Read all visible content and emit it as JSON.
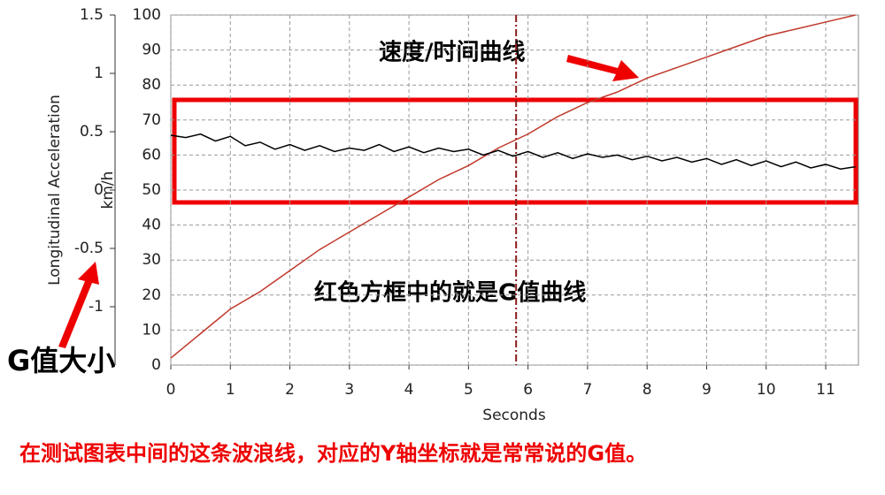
{
  "chart_data": {
    "type": "line",
    "ylabel": "Longitudinal Acceleration",
    "y2label": "km/h",
    "xlabel": "Seconds",
    "annotations": [
      "速度/时间曲线",
      "红色方框中的就是G值曲线",
      "G值大小",
      "在测试图表中间的这条波浪线，对应的Y轴坐标就是常常说的G值。"
    ],
    "xlim": [
      0,
      11.55
    ],
    "xticks": [
      0,
      1,
      2,
      3,
      4,
      5,
      6,
      7,
      8,
      9,
      10,
      11
    ],
    "ylim": [
      -1.5,
      1.5
    ],
    "yticks": [
      1.5,
      1,
      0.5,
      0,
      -0.5,
      -1
    ],
    "y2lim": [
      0,
      100
    ],
    "y2ticks": [
      0,
      10,
      20,
      30,
      40,
      50,
      60,
      70,
      80,
      90,
      100
    ],
    "grid": true,
    "cursor_x": 5.8,
    "cursor_color": "#8b1a1a",
    "series": [
      {
        "color": "#c0392b",
        "axis": "y2",
        "x": [
          0,
          0.5,
          1,
          1.5,
          2,
          2.5,
          3,
          3.5,
          4,
          4.5,
          5,
          5.5,
          6,
          6.5,
          7,
          7.5,
          8,
          8.5,
          9,
          9.5,
          10,
          10.5,
          11,
          11.5
        ],
        "values": [
          2,
          9,
          16,
          21,
          27,
          33,
          38,
          43,
          48,
          53,
          57,
          62,
          66,
          71,
          75,
          78,
          82,
          85,
          88,
          91,
          94,
          96,
          98,
          100
        ]
      },
      {
        "color": "#000000",
        "axis": "y",
        "x": [
          0,
          0.25,
          0.5,
          0.75,
          1,
          1.25,
          1.5,
          1.75,
          2,
          2.25,
          2.5,
          2.75,
          3,
          3.25,
          3.5,
          3.75,
          4,
          4.25,
          4.5,
          4.75,
          5,
          5.25,
          5.5,
          5.75,
          6,
          6.25,
          6.5,
          6.75,
          7,
          7.25,
          7.5,
          7.75,
          8,
          8.25,
          8.5,
          8.75,
          9,
          9.25,
          9.5,
          9.75,
          10,
          10.25,
          10.5,
          10.75,
          11,
          11.25,
          11.5
        ],
        "values": [
          0.47,
          0.45,
          0.48,
          0.42,
          0.46,
          0.38,
          0.41,
          0.35,
          0.39,
          0.34,
          0.38,
          0.33,
          0.36,
          0.34,
          0.39,
          0.33,
          0.37,
          0.32,
          0.36,
          0.33,
          0.35,
          0.3,
          0.34,
          0.29,
          0.33,
          0.28,
          0.32,
          0.27,
          0.31,
          0.28,
          0.3,
          0.26,
          0.29,
          0.25,
          0.28,
          0.24,
          0.27,
          0.22,
          0.26,
          0.21,
          0.25,
          0.2,
          0.24,
          0.19,
          0.22,
          0.18,
          0.2
        ]
      }
    ]
  }
}
